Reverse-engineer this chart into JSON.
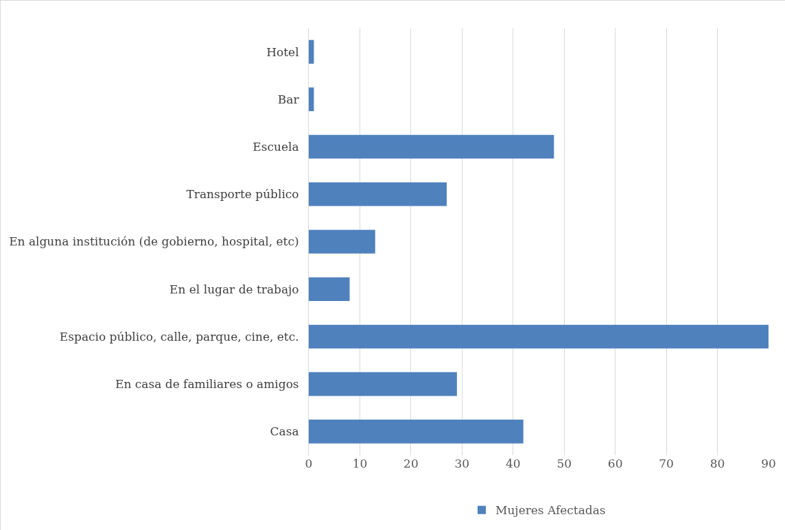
{
  "chart_data": {
    "type": "bar",
    "orientation": "horizontal",
    "categories": [
      "Hotel",
      "Bar",
      "Escuela",
      "Transporte público",
      "En alguna institución (de gobierno, hospital, etc)",
      "En el lugar de trabajo",
      "Espacio público, calle, parque, cine, etc.",
      "En casa de familiares o amigos",
      "Casa"
    ],
    "series": [
      {
        "name": "Mujeres Afectadas",
        "color": "#4f81bd",
        "values": [
          1,
          1,
          48,
          27,
          13,
          8,
          90,
          29,
          42
        ]
      }
    ],
    "xlim": [
      0,
      90
    ],
    "xticks": [
      0,
      10,
      20,
      30,
      40,
      50,
      60,
      70,
      80,
      90
    ],
    "grid": "x",
    "legend": "bottom"
  }
}
